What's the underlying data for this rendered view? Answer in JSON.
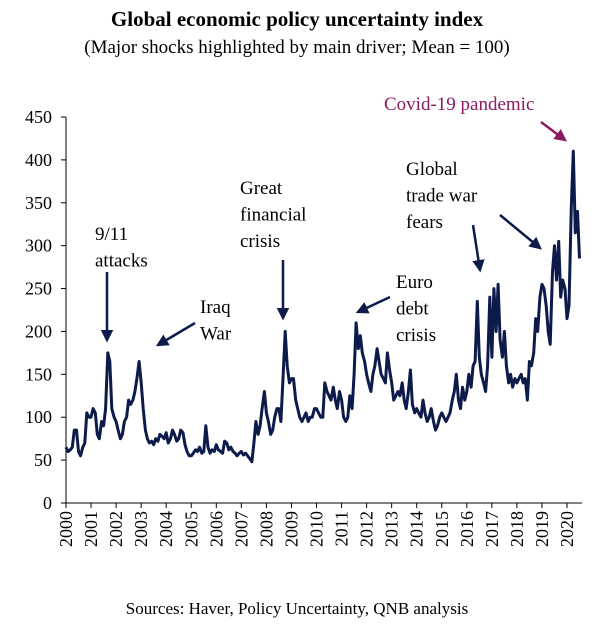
{
  "chart_data": {
    "type": "line",
    "title": "Global economic policy uncertainty index",
    "subtitle": "(Major shocks highlighted by main driver; Mean = 100)",
    "source": "Sources: Haver, Policy Uncertainty, QNB analysis",
    "annotations": [
      {
        "lines": [
          "9/11",
          "attacks"
        ]
      },
      {
        "lines": [
          "Iraq",
          "War"
        ]
      },
      {
        "lines": [
          "Great",
          "financial",
          "crisis"
        ]
      },
      {
        "lines": [
          "Euro",
          "debt",
          "crisis"
        ]
      },
      {
        "lines": [
          "Global",
          "trade war",
          "fears"
        ]
      },
      {
        "lines": [
          "Covid-19 pandemic"
        ],
        "color": "#8b1a5e"
      }
    ],
    "x": [
      2000,
      2000.08,
      2000.17,
      2000.25,
      2000.33,
      2000.42,
      2000.5,
      2000.58,
      2000.67,
      2000.75,
      2000.83,
      2000.92,
      2001,
      2001.08,
      2001.17,
      2001.25,
      2001.33,
      2001.42,
      2001.5,
      2001.58,
      2001.67,
      2001.75,
      2001.83,
      2001.92,
      2002,
      2002.08,
      2002.17,
      2002.25,
      2002.33,
      2002.42,
      2002.5,
      2002.58,
      2002.67,
      2002.75,
      2002.83,
      2002.92,
      2003,
      2003.08,
      2003.17,
      2003.25,
      2003.33,
      2003.42,
      2003.5,
      2003.58,
      2003.67,
      2003.75,
      2003.83,
      2003.92,
      2004,
      2004.08,
      2004.17,
      2004.25,
      2004.33,
      2004.42,
      2004.5,
      2004.58,
      2004.67,
      2004.75,
      2004.83,
      2004.92,
      2005,
      2005.08,
      2005.17,
      2005.25,
      2005.33,
      2005.42,
      2005.5,
      2005.58,
      2005.67,
      2005.75,
      2005.83,
      2005.92,
      2006,
      2006.08,
      2006.17,
      2006.25,
      2006.33,
      2006.42,
      2006.5,
      2006.58,
      2006.67,
      2006.75,
      2006.83,
      2006.92,
      2007,
      2007.08,
      2007.17,
      2007.25,
      2007.33,
      2007.42,
      2007.5,
      2007.58,
      2007.67,
      2007.75,
      2007.83,
      2007.92,
      2008,
      2008.08,
      2008.17,
      2008.25,
      2008.33,
      2008.42,
      2008.5,
      2008.58,
      2008.67,
      2008.75,
      2008.83,
      2008.92,
      2009,
      2009.08,
      2009.17,
      2009.25,
      2009.33,
      2009.42,
      2009.5,
      2009.58,
      2009.67,
      2009.75,
      2009.83,
      2009.92,
      2010,
      2010.08,
      2010.17,
      2010.25,
      2010.33,
      2010.42,
      2010.5,
      2010.58,
      2010.67,
      2010.75,
      2010.83,
      2010.92,
      2011,
      2011.08,
      2011.17,
      2011.25,
      2011.33,
      2011.42,
      2011.5,
      2011.58,
      2011.67,
      2011.75,
      2011.83,
      2011.92,
      2012,
      2012.08,
      2012.17,
      2012.25,
      2012.33,
      2012.42,
      2012.5,
      2012.58,
      2012.67,
      2012.75,
      2012.83,
      2012.92,
      2013,
      2013.08,
      2013.17,
      2013.25,
      2013.33,
      2013.42,
      2013.5,
      2013.58,
      2013.67,
      2013.75,
      2013.83,
      2013.92,
      2014,
      2014.08,
      2014.17,
      2014.25,
      2014.33,
      2014.42,
      2014.5,
      2014.58,
      2014.67,
      2014.75,
      2014.83,
      2014.92,
      2015,
      2015.08,
      2015.17,
      2015.25,
      2015.33,
      2015.42,
      2015.5,
      2015.58,
      2015.67,
      2015.75,
      2015.83,
      2015.92,
      2016,
      2016.08,
      2016.17,
      2016.25,
      2016.33,
      2016.42,
      2016.5,
      2016.58,
      2016.67,
      2016.75,
      2016.83,
      2016.92,
      2017,
      2017.08,
      2017.17,
      2017.25,
      2017.33,
      2017.42,
      2017.5,
      2017.58,
      2017.67,
      2017.75,
      2017.83,
      2017.92,
      2018,
      2018.08,
      2018.17,
      2018.25,
      2018.33,
      2018.42,
      2018.5,
      2018.58,
      2018.67,
      2018.75,
      2018.83,
      2018.92,
      2019,
      2019.08,
      2019.17,
      2019.25,
      2019.33,
      2019.42,
      2019.5,
      2019.58,
      2019.67,
      2019.75,
      2019.83,
      2019.92,
      2020,
      2020.08,
      2020.17,
      2020.25,
      2020.33,
      2020.42,
      2020.5
    ],
    "series": [
      {
        "color": "#0d1b4a",
        "values": [
          65,
          60,
          62,
          65,
          85,
          85,
          60,
          55,
          65,
          70,
          105,
          100,
          100,
          110,
          105,
          80,
          75,
          95,
          90,
          110,
          175,
          165,
          110,
          100,
          95,
          85,
          75,
          80,
          95,
          100,
          120,
          115,
          120,
          130,
          145,
          165,
          140,
          110,
          85,
          75,
          70,
          72,
          68,
          75,
          72,
          80,
          78,
          75,
          82,
          70,
          75,
          85,
          80,
          72,
          75,
          85,
          82,
          68,
          60,
          55,
          55,
          58,
          62,
          60,
          65,
          58,
          60,
          90,
          65,
          58,
          62,
          60,
          68,
          62,
          60,
          58,
          72,
          70,
          62,
          65,
          60,
          58,
          55,
          58,
          60,
          56,
          58,
          55,
          52,
          48,
          70,
          95,
          80,
          90,
          110,
          130,
          105,
          95,
          80,
          85,
          100,
          110,
          110,
          95,
          150,
          200,
          160,
          140,
          145,
          145,
          120,
          110,
          100,
          95,
          100,
          105,
          95,
          100,
          100,
          110,
          110,
          105,
          100,
          100,
          140,
          130,
          125,
          120,
          135,
          120,
          110,
          130,
          120,
          100,
          95,
          100,
          125,
          110,
          150,
          210,
          180,
          195,
          175,
          165,
          150,
          140,
          130,
          150,
          160,
          180,
          165,
          150,
          145,
          140,
          175,
          155,
          140,
          120,
          125,
          130,
          125,
          140,
          120,
          110,
          130,
          155,
          115,
          105,
          110,
          105,
          100,
          120,
          105,
          95,
          100,
          110,
          95,
          85,
          90,
          100,
          105,
          100,
          95,
          100,
          105,
          120,
          130,
          150,
          120,
          110,
          135,
          120,
          130,
          150,
          135,
          160,
          165,
          235,
          170,
          150,
          140,
          130,
          160,
          240,
          170,
          250,
          200,
          255,
          190,
          170,
          200,
          160,
          140,
          150,
          135,
          145,
          140,
          145,
          150,
          140,
          145,
          120,
          165,
          160,
          175,
          215,
          200,
          240,
          255,
          250,
          230,
          200,
          185,
          270,
          300,
          260,
          305,
          240,
          260,
          250,
          215,
          230,
          345,
          410,
          315,
          340,
          285
        ]
      }
    ],
    "xlim": [
      2000,
      2020.6
    ],
    "xticks": [
      2000,
      2001,
      2002,
      2003,
      2004,
      2005,
      2006,
      2007,
      2008,
      2009,
      2010,
      2011,
      2012,
      2013,
      2014,
      2015,
      2016,
      2017,
      2018,
      2019,
      2020
    ],
    "ylim": [
      0,
      450
    ],
    "yticks": [
      0,
      50,
      100,
      150,
      200,
      250,
      300,
      350,
      400,
      450
    ]
  }
}
